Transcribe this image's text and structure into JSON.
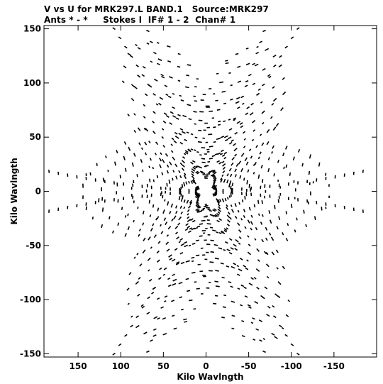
{
  "header": {
    "title_line1": "V vs U for MRK297.L BAND.1   Source:MRK297",
    "title_line2": "Ants * - *     Stokes I  IF# 1 - 2  Chan# 1"
  },
  "chart_data": {
    "type": "scatter",
    "title": "V vs U for MRK297.L BAND.1   Source:MRK297",
    "subtitle": "Ants * - *     Stokes I  IF# 1 - 2  Chan# 1",
    "xlabel": "Kilo Wavlngth",
    "ylabel": "Kilo Wavlngth",
    "xlim": [
      190,
      -200
    ],
    "ylim": [
      -153,
      153
    ],
    "x_reversed": true,
    "x_ticks": [
      150,
      100,
      50,
      0,
      -50,
      -100,
      -150
    ],
    "y_ticks": [
      150,
      100,
      50,
      0,
      -50,
      -100,
      -150
    ],
    "grid": false,
    "marker_color": "#000000",
    "uv_coverage": {
      "arms_deg": [
        0,
        60,
        120,
        180,
        240,
        300
      ],
      "arm_outer_limit_klambda": 195,
      "between_arm_outer_limit_klambda": 92,
      "num_baseline_tracks": 34,
      "note": "6-fold symmetric star-shaped uv coverage of short dash marks"
    }
  }
}
